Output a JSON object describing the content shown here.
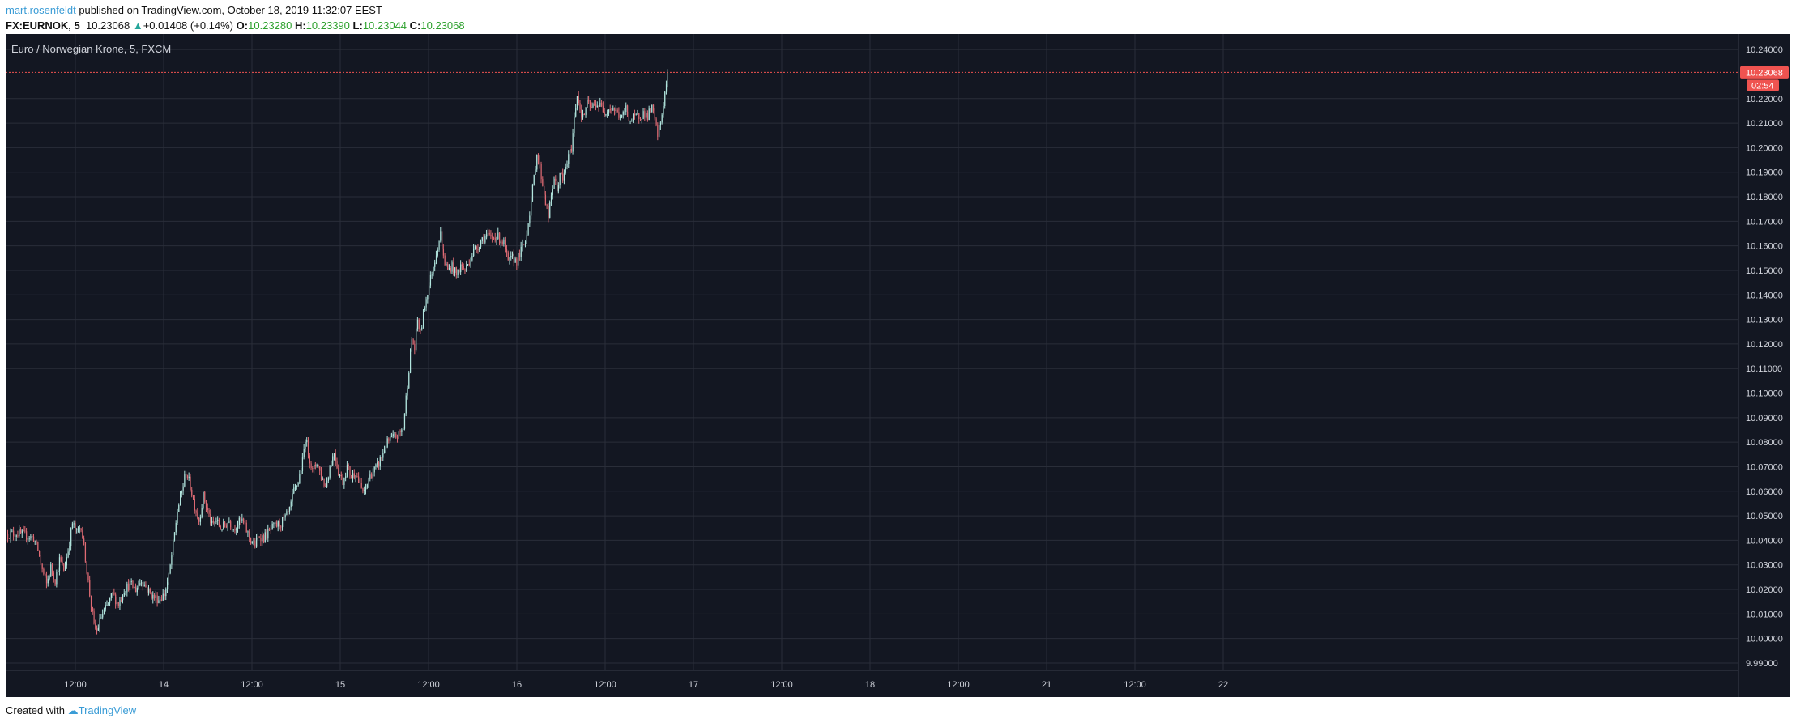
{
  "header": {
    "author": "mart.rosenfeldt",
    "published_text": " published on TradingView.com, October 18, 2019 11:32:07 EEST",
    "symbol": "FX:EURNOK, 5",
    "last_price": "10.23068",
    "change_arrow": "▲",
    "change": "+0.01408 (+0.14%)",
    "open_label": "O:",
    "open": "10.23280",
    "high_label": "H:",
    "high": "10.23390",
    "low_label": "L:",
    "low": "10.23044",
    "close_label": "C:",
    "close": "10.23068"
  },
  "footer": {
    "created_with": "Created with",
    "brand": "TradingView"
  },
  "colors": {
    "background": "#131722",
    "grid": "#2a2e39",
    "up": "#b2e6df",
    "down": "#e06b74",
    "price_line": "#ef5350",
    "axis_text": "#d1d4dc"
  },
  "chart_data": {
    "type": "candlestick",
    "title": "Euro / Norwegian Krone, 5, FXCM",
    "ylim": [
      9.99,
      10.245
    ],
    "y_ticks": [
      "10.24000",
      "10.23000",
      "10.22000",
      "10.21000",
      "10.20000",
      "10.19000",
      "10.18000",
      "10.17000",
      "10.16000",
      "10.15000",
      "10.14000",
      "10.13000",
      "10.12000",
      "10.11000",
      "10.10000",
      "10.09000",
      "10.08000",
      "10.07000",
      "10.06000",
      "10.05000",
      "10.04000",
      "10.03000",
      "10.02000",
      "10.01000",
      "10.00000",
      "9.99000"
    ],
    "x_ticks": [
      "12:00",
      "14",
      "12:00",
      "15",
      "12:00",
      "16",
      "12:00",
      "17",
      "12:00",
      "18",
      "12:00",
      "21",
      "12:00",
      "22"
    ],
    "current_price": 10.23068,
    "current_price_label": "10.23068",
    "countdown": "02:54",
    "path": [
      [
        0,
        10.0425
      ],
      [
        6,
        10.043
      ],
      [
        12,
        10.042
      ],
      [
        18,
        10.041
      ],
      [
        21,
        10.036
      ],
      [
        24,
        10.028
      ],
      [
        27,
        10.022
      ],
      [
        30,
        10.029
      ],
      [
        33,
        10.024
      ],
      [
        36,
        10.032
      ],
      [
        39,
        10.028
      ],
      [
        42,
        10.036
      ],
      [
        45,
        10.047
      ],
      [
        48,
        10.043
      ],
      [
        51,
        10.046
      ],
      [
        54,
        10.033
      ],
      [
        57,
        10.018
      ],
      [
        60,
        10.005
      ],
      [
        62,
        10.003
      ],
      [
        65,
        10.009
      ],
      [
        69,
        10.013
      ],
      [
        73,
        10.018
      ],
      [
        77,
        10.014
      ],
      [
        81,
        10.02
      ],
      [
        85,
        10.022
      ],
      [
        89,
        10.02
      ],
      [
        93,
        10.024
      ],
      [
        97,
        10.02
      ],
      [
        101,
        10.017
      ],
      [
        105,
        10.016
      ],
      [
        109,
        10.018
      ],
      [
        112,
        10.025
      ],
      [
        115,
        10.038
      ],
      [
        118,
        10.052
      ],
      [
        121,
        10.06
      ],
      [
        124,
        10.068
      ],
      [
        127,
        10.062
      ],
      [
        130,
        10.054
      ],
      [
        133,
        10.048
      ],
      [
        136,
        10.058
      ],
      [
        139,
        10.052
      ],
      [
        142,
        10.046
      ],
      [
        145,
        10.048
      ],
      [
        148,
        10.045
      ],
      [
        151,
        10.046
      ],
      [
        154,
        10.048
      ],
      [
        157,
        10.045
      ],
      [
        160,
        10.047
      ],
      [
        163,
        10.048
      ],
      [
        166,
        10.044
      ],
      [
        169,
        10.04
      ],
      [
        172,
        10.038
      ],
      [
        175,
        10.042
      ],
      [
        178,
        10.041
      ],
      [
        181,
        10.043
      ],
      [
        184,
        10.045
      ],
      [
        187,
        10.046
      ],
      [
        190,
        10.047
      ],
      [
        193,
        10.049
      ],
      [
        196,
        10.052
      ],
      [
        199,
        10.06
      ],
      [
        202,
        10.064
      ],
      [
        205,
        10.072
      ],
      [
        207,
        10.082
      ],
      [
        209,
        10.076
      ],
      [
        212,
        10.068
      ],
      [
        215,
        10.072
      ],
      [
        218,
        10.066
      ],
      [
        221,
        10.062
      ],
      [
        224,
        10.07
      ],
      [
        227,
        10.076
      ],
      [
        230,
        10.068
      ],
      [
        233,
        10.064
      ],
      [
        236,
        10.07
      ],
      [
        239,
        10.066
      ],
      [
        242,
        10.068
      ],
      [
        245,
        10.062
      ],
      [
        248,
        10.059
      ],
      [
        251,
        10.065
      ],
      [
        254,
        10.068
      ],
      [
        257,
        10.07
      ],
      [
        260,
        10.074
      ],
      [
        263,
        10.079
      ],
      [
        266,
        10.081
      ],
      [
        269,
        10.082
      ],
      [
        272,
        10.083
      ],
      [
        275,
        10.086
      ],
      [
        277,
        10.098
      ],
      [
        279,
        10.11
      ],
      [
        281,
        10.122
      ],
      [
        283,
        10.118
      ],
      [
        285,
        10.13
      ],
      [
        287,
        10.124
      ],
      [
        290,
        10.136
      ],
      [
        293,
        10.144
      ],
      [
        296,
        10.152
      ],
      [
        299,
        10.16
      ],
      [
        301,
        10.165
      ],
      [
        303,
        10.155
      ],
      [
        306,
        10.15
      ],
      [
        309,
        10.152
      ],
      [
        312,
        10.148
      ],
      [
        315,
        10.152
      ],
      [
        318,
        10.15
      ],
      [
        321,
        10.154
      ],
      [
        324,
        10.158
      ],
      [
        327,
        10.16
      ],
      [
        330,
        10.163
      ],
      [
        333,
        10.164
      ],
      [
        336,
        10.163
      ],
      [
        339,
        10.164
      ],
      [
        342,
        10.163
      ],
      [
        345,
        10.161
      ],
      [
        348,
        10.153
      ],
      [
        351,
        10.155
      ],
      [
        354,
        10.154
      ],
      [
        357,
        10.158
      ],
      [
        360,
        10.162
      ],
      [
        362,
        10.17
      ],
      [
        364,
        10.178
      ],
      [
        366,
        10.188
      ],
      [
        368,
        10.198
      ],
      [
        370,
        10.192
      ],
      [
        372,
        10.185
      ],
      [
        374,
        10.178
      ],
      [
        376,
        10.172
      ],
      [
        378,
        10.18
      ],
      [
        380,
        10.188
      ],
      [
        382,
        10.182
      ],
      [
        384,
        10.19
      ],
      [
        386,
        10.186
      ],
      [
        388,
        10.192
      ],
      [
        390,
        10.196
      ],
      [
        392,
        10.2
      ],
      [
        394,
        10.212
      ],
      [
        396,
        10.222
      ],
      [
        398,
        10.216
      ],
      [
        400,
        10.212
      ],
      [
        403,
        10.218
      ],
      [
        406,
        10.216
      ],
      [
        409,
        10.218
      ],
      [
        412,
        10.217
      ],
      [
        415,
        10.215
      ],
      [
        418,
        10.216
      ],
      [
        421,
        10.216
      ],
      [
        424,
        10.214
      ],
      [
        427,
        10.212
      ],
      [
        430,
        10.216
      ],
      [
        433,
        10.211
      ],
      [
        436,
        10.212
      ],
      [
        439,
        10.213
      ],
      [
        442,
        10.214
      ],
      [
        445,
        10.213
      ],
      [
        448,
        10.216
      ],
      [
        450,
        10.211
      ],
      [
        452,
        10.205
      ],
      [
        454,
        10.21
      ],
      [
        456,
        10.218
      ],
      [
        458,
        10.226
      ],
      [
        459,
        10.2307
      ]
    ]
  }
}
